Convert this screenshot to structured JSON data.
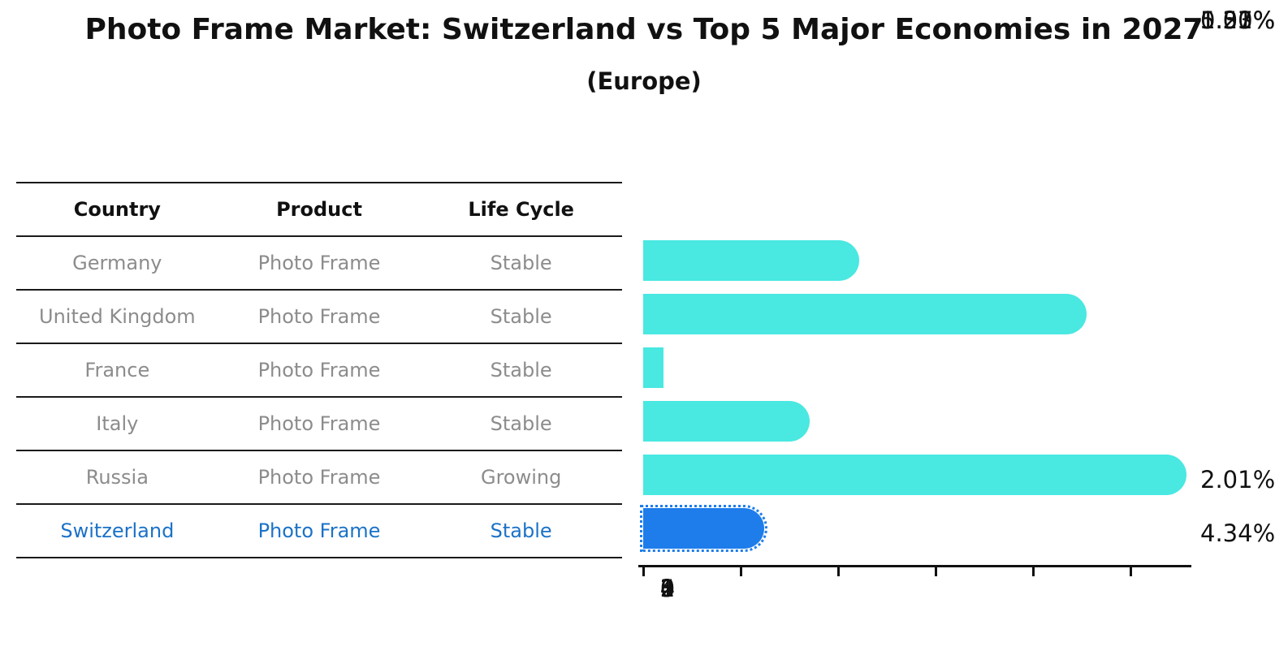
{
  "chart": {
    "title": "Photo Frame Market: Switzerland vs Top 5 Major Economies in 2027",
    "subtitle": "(Europe)"
  },
  "table": {
    "headers": [
      "Country",
      "Product",
      "Life Cycle"
    ],
    "rows": [
      {
        "country": "Germany",
        "product": "Photo Frame",
        "life_cycle": "Stable",
        "highlighted": false
      },
      {
        "country": "United Kingdom",
        "product": "Photo Frame",
        "life_cycle": "Stable",
        "highlighted": false
      },
      {
        "country": "France",
        "product": "Photo Frame",
        "life_cycle": "Stable",
        "highlighted": false
      },
      {
        "country": "Italy",
        "product": "Photo Frame",
        "life_cycle": "Stable",
        "highlighted": false
      },
      {
        "country": "Russia",
        "product": "Photo Frame",
        "life_cycle": "Growing",
        "highlighted": false
      },
      {
        "country": "Switzerland",
        "product": "Photo Frame",
        "life_cycle": "Stable",
        "highlighted": true
      }
    ]
  },
  "chart_data": {
    "type": "bar",
    "orientation": "horizontal",
    "title": "Photo Frame Market: Switzerland vs Top 5 Major Economies in 2027",
    "subtitle": "(Europe)",
    "categories": [
      "Germany",
      "United Kingdom",
      "France",
      "Italy",
      "Russia",
      "Switzerland"
    ],
    "values": [
      2.01,
      4.34,
      0.21,
      1.5,
      5.37,
      1.03
    ],
    "value_labels": [
      "2.01%",
      "4.34%",
      "0.21%",
      "1.50%",
      "5.37%",
      "1.03%"
    ],
    "x_ticks": [
      "0",
      "1",
      "2",
      "3",
      "4",
      "5"
    ],
    "xlim": [
      0,
      5.63
    ],
    "xlabel": "",
    "ylabel": "",
    "grid": false,
    "legend": false,
    "highlight_index": 5,
    "bar_color": "#49e8e1",
    "highlight_bar_color": "#1e7deb",
    "highlight_text_color": "#1b72c7",
    "table_text_color": "#8c8c8c"
  }
}
